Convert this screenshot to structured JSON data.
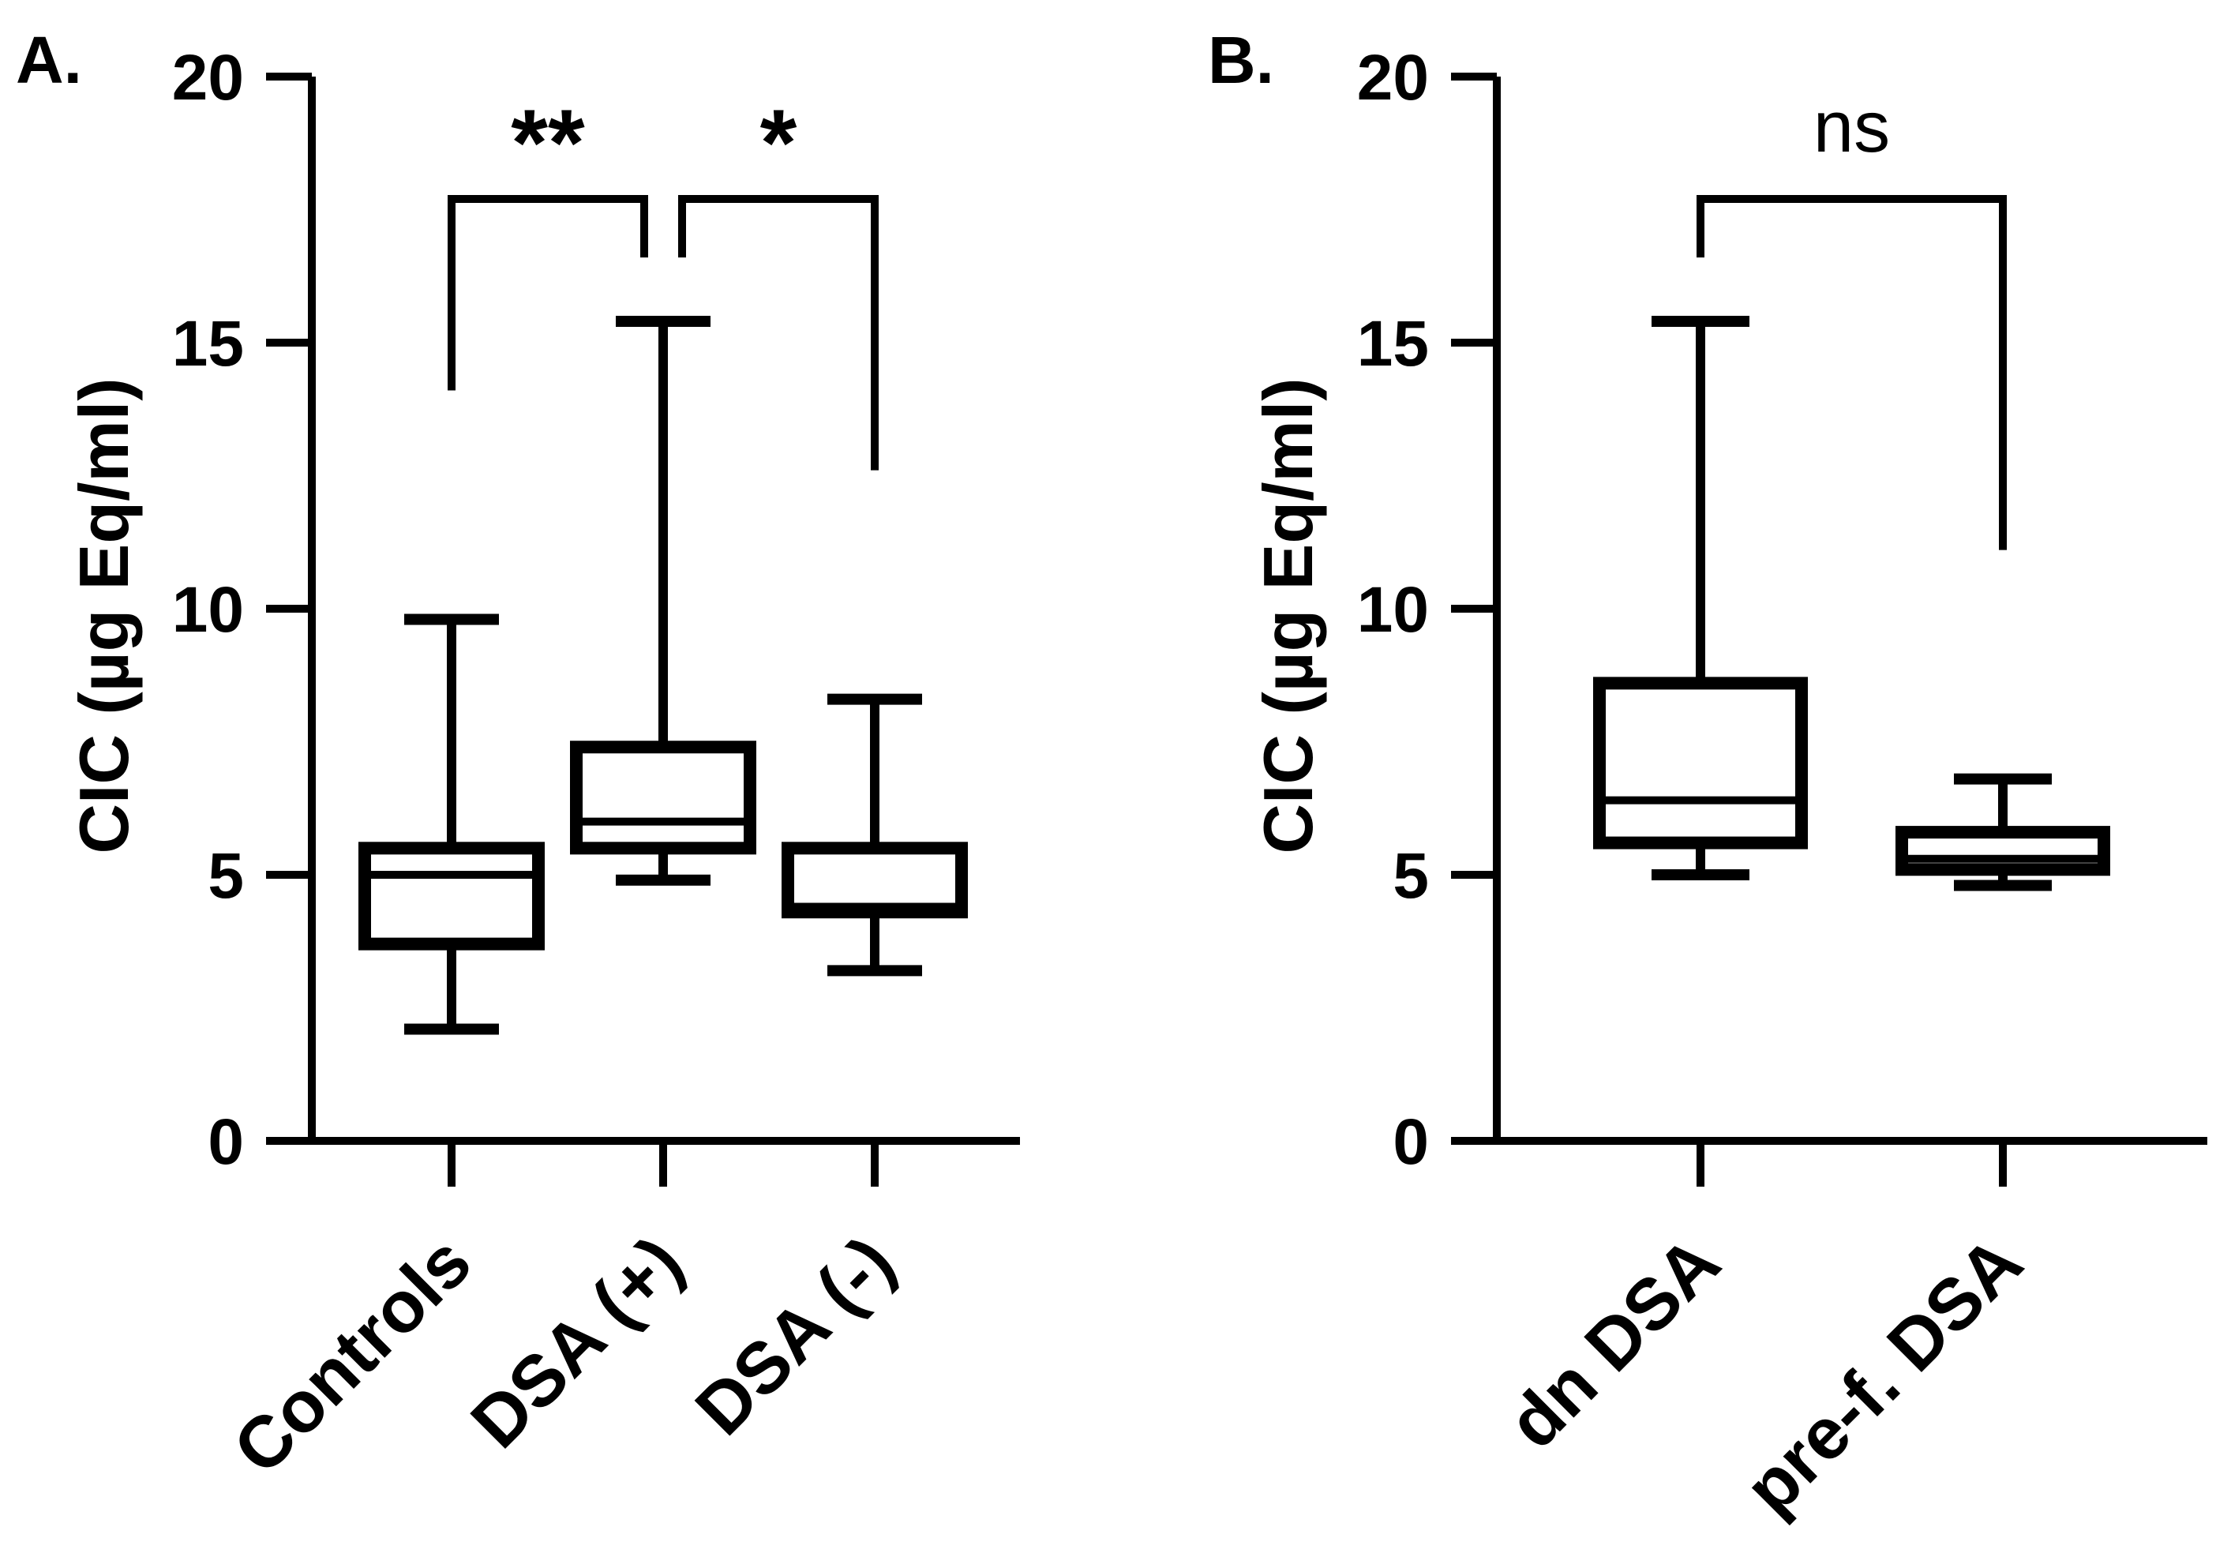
{
  "chart_data": [
    {
      "type": "box",
      "panel_label": "A.",
      "ylabel": "CIC (µg Eq/ml)",
      "ylim": [
        0,
        20
      ],
      "yticks": [
        0,
        5,
        10,
        15,
        20
      ],
      "ytick_labels": [
        "0",
        "5",
        "10",
        "15",
        "20"
      ],
      "categories": [
        "Controls",
        "DSA (+)",
        "DSA (-)"
      ],
      "boxes": [
        {
          "min": 2.1,
          "q1": 3.7,
          "median": 5.0,
          "q3": 5.5,
          "max": 9.8
        },
        {
          "min": 4.9,
          "q1": 5.5,
          "median": 6.0,
          "q3": 7.4,
          "max": 15.4
        },
        {
          "min": 3.2,
          "q1": 4.3,
          "median": 4.4,
          "q3": 5.5,
          "max": 8.3
        }
      ],
      "comparisons": [
        {
          "groups": [
            "Controls",
            "DSA (+)"
          ],
          "label": "**",
          "y": 17.7
        },
        {
          "groups": [
            "DSA (+)",
            "DSA (-)"
          ],
          "label": "*",
          "y": 17.7
        }
      ]
    },
    {
      "type": "box",
      "panel_label": "B.",
      "ylabel": "CIC (µg Eq/ml)",
      "ylim": [
        0,
        20
      ],
      "yticks": [
        0,
        5,
        10,
        15,
        20
      ],
      "ytick_labels": [
        "0",
        "5",
        "10",
        "15",
        "20"
      ],
      "categories": [
        "dn DSA",
        "pre-f. DSA"
      ],
      "boxes": [
        {
          "min": 5.0,
          "q1": 5.6,
          "median": 6.4,
          "q3": 8.6,
          "max": 15.4
        },
        {
          "min": 4.8,
          "q1": 5.1,
          "median": 5.3,
          "q3": 5.8,
          "max": 6.8
        }
      ],
      "comparisons": [
        {
          "groups": [
            "dn DSA",
            "pre-f. DSA"
          ],
          "label": "ns",
          "y": 17.7
        }
      ]
    }
  ]
}
